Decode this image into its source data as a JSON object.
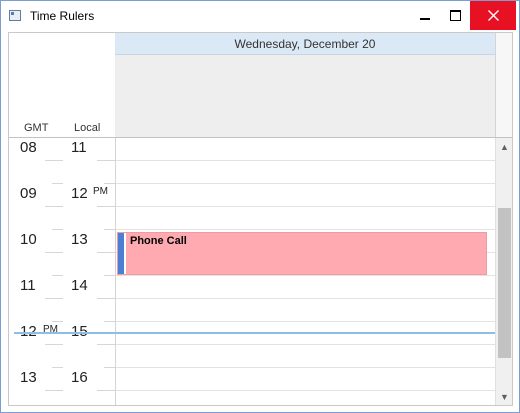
{
  "window": {
    "title": "Time Rulers",
    "icon": "app-window-icon",
    "accent": "#e81123"
  },
  "header": {
    "date": "Wednesday, December 20",
    "rulers": [
      "GMT",
      "Local"
    ]
  },
  "gmt_ruler": [
    {
      "hour": "08",
      "ampm": ""
    },
    {
      "hour": "09",
      "ampm": ""
    },
    {
      "hour": "10",
      "ampm": ""
    },
    {
      "hour": "11",
      "ampm": ""
    },
    {
      "hour": "12",
      "ampm": "PM"
    },
    {
      "hour": "13",
      "ampm": ""
    }
  ],
  "local_ruler": [
    {
      "hour": "11",
      "ampm": ""
    },
    {
      "hour": "12",
      "ampm": "PM"
    },
    {
      "hour": "13",
      "ampm": ""
    },
    {
      "hour": "14",
      "ampm": ""
    },
    {
      "hour": "15",
      "ampm": ""
    },
    {
      "hour": "16",
      "ampm": ""
    }
  ],
  "appointment": {
    "subject": "Phone Call",
    "color": "#ffa9b0",
    "status_color": "#4a7fd4"
  },
  "colors": {
    "header": "#dbe9f6",
    "allday": "#eeeeee",
    "now_line": "#8dbfe6"
  }
}
